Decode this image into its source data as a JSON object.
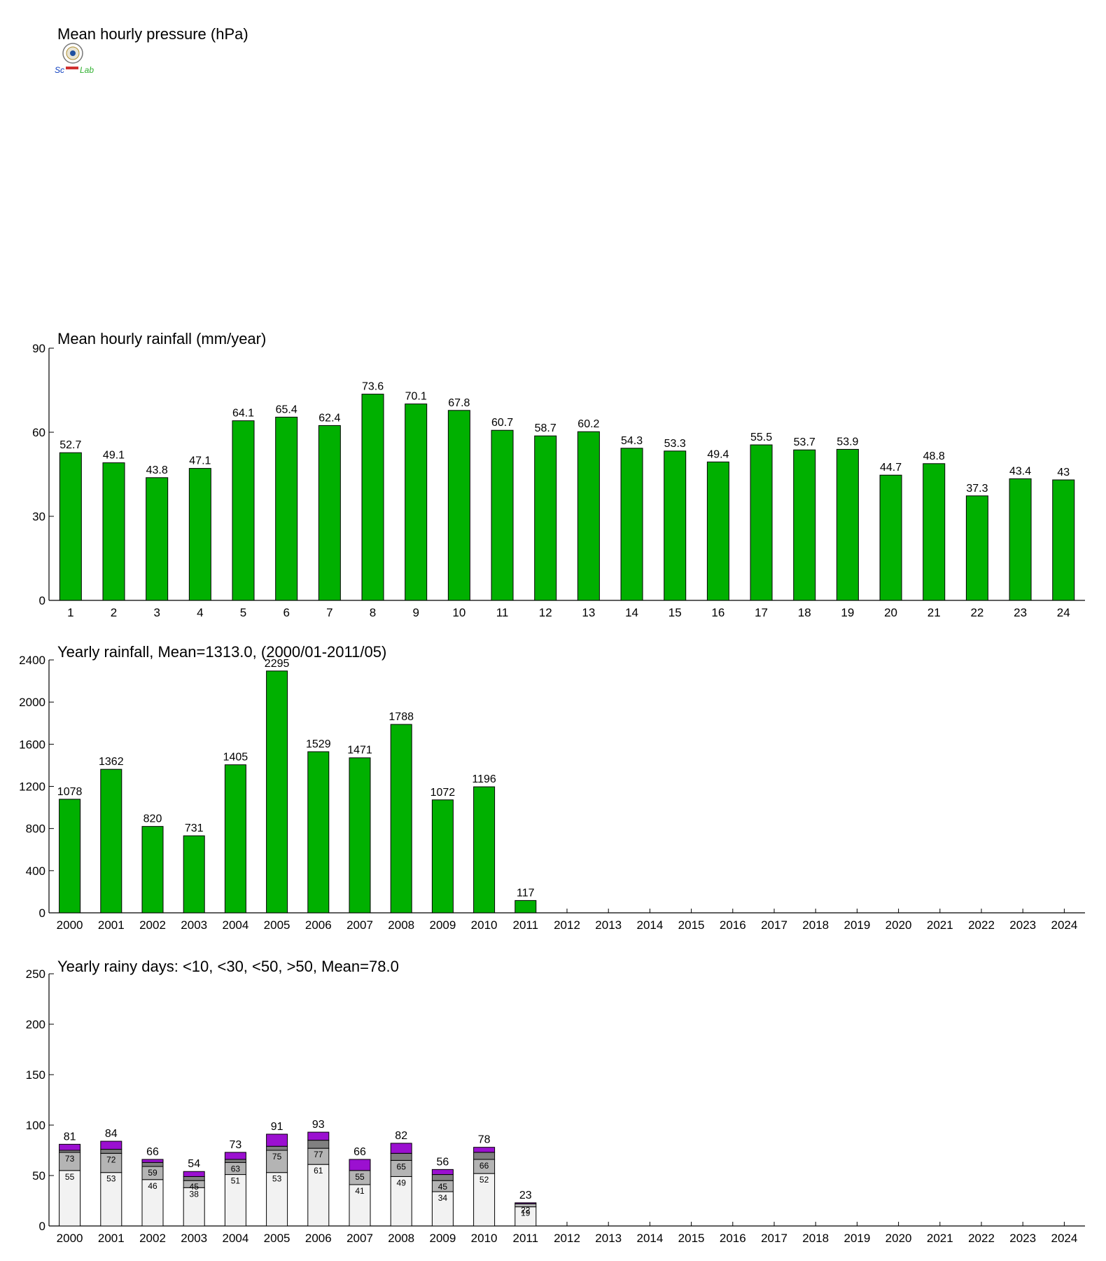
{
  "colors": {
    "bar_green": "#00b000",
    "days_lt10": "#f2f2f2",
    "days_lt30": "#b4b4b4",
    "days_lt50": "#808080",
    "days_gt50": "#9b10d0"
  },
  "logo": {
    "text_left": "Sc",
    "text_right": "Lab"
  },
  "chart_data": [
    {
      "type": "empty",
      "title": "Mean hourly pressure (hPa)"
    },
    {
      "type": "bar",
      "title": "Mean hourly rainfall (mm/year)",
      "categories": [
        "1",
        "2",
        "3",
        "4",
        "5",
        "6",
        "7",
        "8",
        "9",
        "10",
        "11",
        "12",
        "13",
        "14",
        "15",
        "16",
        "17",
        "18",
        "19",
        "20",
        "21",
        "22",
        "23",
        "24"
      ],
      "values": [
        52.7,
        49.1,
        43.8,
        47.1,
        64.1,
        65.4,
        62.4,
        73.6,
        70.1,
        67.8,
        60.7,
        58.7,
        60.2,
        54.3,
        53.3,
        49.4,
        55.5,
        53.7,
        53.9,
        44.7,
        48.8,
        37.3,
        43.4,
        43
      ],
      "labels": [
        "52.7",
        "49.1",
        "43.8",
        "47.1",
        "64.1",
        "65.4",
        "62.4",
        "73.6",
        "70.1",
        "67.8",
        "60.7",
        "58.7",
        "60.2",
        "54.3",
        "53.3",
        "49.4",
        "55.5",
        "53.7",
        "53.9",
        "44.7",
        "48.8",
        "37.3",
        "43.4",
        "43"
      ],
      "ylim": [
        0,
        90
      ],
      "yticks": [
        0,
        30,
        60,
        90
      ],
      "grid": false
    },
    {
      "type": "bar",
      "title": "Yearly rainfall, Mean=1313.0, (2000/01-2011/05)",
      "categories": [
        "2000",
        "2001",
        "2002",
        "2003",
        "2004",
        "2005",
        "2006",
        "2007",
        "2008",
        "2009",
        "2010",
        "2011",
        "2012",
        "2013",
        "2014",
        "2015",
        "2016",
        "2017",
        "2018",
        "2019",
        "2020",
        "2021",
        "2022",
        "2023",
        "2024"
      ],
      "values": [
        1078,
        1362,
        820,
        731,
        1405,
        2295,
        1529,
        1471,
        1788,
        1072,
        1196,
        117,
        null,
        null,
        null,
        null,
        null,
        null,
        null,
        null,
        null,
        null,
        null,
        null,
        null
      ],
      "ylim": [
        0,
        2400
      ],
      "yticks": [
        0,
        400,
        800,
        1200,
        1600,
        2000,
        2400
      ],
      "grid": false
    },
    {
      "type": "stacked-bar",
      "title": "Yearly rainy days: <10, <30, <50, >50, Mean=78.0",
      "categories": [
        "2000",
        "2001",
        "2002",
        "2003",
        "2004",
        "2005",
        "2006",
        "2007",
        "2008",
        "2009",
        "2010",
        "2011",
        "2012",
        "2013",
        "2014",
        "2015",
        "2016",
        "2017",
        "2018",
        "2019",
        "2020",
        "2021",
        "2022",
        "2023",
        "2024"
      ],
      "series": [
        {
          "name": "<10",
          "cumulative": [
            55,
            53,
            46,
            38,
            51,
            53,
            61,
            41,
            49,
            34,
            52,
            19,
            null,
            null,
            null,
            null,
            null,
            null,
            null,
            null,
            null,
            null,
            null,
            null,
            null
          ]
        },
        {
          "name": "<30",
          "cumulative": [
            73,
            72,
            59,
            45,
            63,
            75,
            77,
            55,
            65,
            45,
            66,
            22,
            null,
            null,
            null,
            null,
            null,
            null,
            null,
            null,
            null,
            null,
            null,
            null,
            null
          ]
        },
        {
          "name": "<50",
          "cumulative": [
            75,
            76,
            63,
            49,
            66,
            79,
            85,
            55,
            72,
            51,
            73,
            22,
            null,
            null,
            null,
            null,
            null,
            null,
            null,
            null,
            null,
            null,
            null,
            null,
            null
          ]
        },
        {
          "name": ">50",
          "cumulative": [
            81,
            84,
            66,
            54,
            73,
            91,
            93,
            66,
            82,
            56,
            78,
            23,
            null,
            null,
            null,
            null,
            null,
            null,
            null,
            null,
            null,
            null,
            null,
            null,
            null
          ]
        }
      ],
      "ylim": [
        0,
        250
      ],
      "yticks": [
        0,
        50,
        100,
        150,
        200,
        250
      ],
      "grid": false
    }
  ]
}
